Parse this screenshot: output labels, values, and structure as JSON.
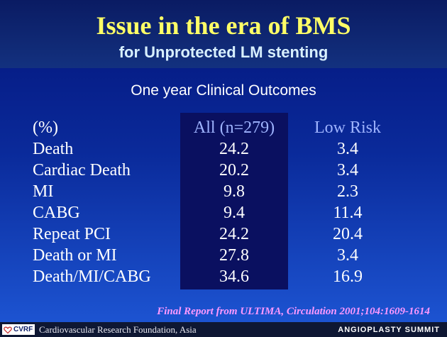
{
  "slide": {
    "title": "Issue in the era of BMS",
    "subtitle": "for Unprotected LM stenting",
    "section_heading": "One year Clinical Outcomes",
    "citation": "Final Report from ULTIMA, Circulation 2001;104:1609-1614"
  },
  "table": {
    "header": {
      "label": "(%)",
      "all": "All (n=279)",
      "low_risk": "Low Risk"
    },
    "rows": [
      {
        "label": "Death",
        "all": "24.2",
        "low_risk": "3.4"
      },
      {
        "label": "Cardiac Death",
        "all": "20.2",
        "low_risk": "3.4"
      },
      {
        "label": "MI",
        "all": "9.8",
        "low_risk": "2.3"
      },
      {
        "label": "CABG",
        "all": "9.4",
        "low_risk": "11.4"
      },
      {
        "label": "Repeat PCI",
        "all": "24.2",
        "low_risk": "20.4"
      },
      {
        "label": "Death or MI",
        "all": "27.8",
        "low_risk": "3.4"
      },
      {
        "label": "Death/MI/CABG",
        "all": "34.6",
        "low_risk": "16.9"
      }
    ]
  },
  "footer": {
    "logo_text": "CVRF",
    "organization": "Cardiovascular Research Foundation, Asia",
    "event": "ANGIOPLASTY SUMMIT"
  },
  "colors": {
    "title": "#ffff66",
    "subtitle": "#d8f0ff",
    "column_header": "#9fb4ff",
    "citation": "#ff99ff",
    "highlight_box": "#0a1060"
  }
}
